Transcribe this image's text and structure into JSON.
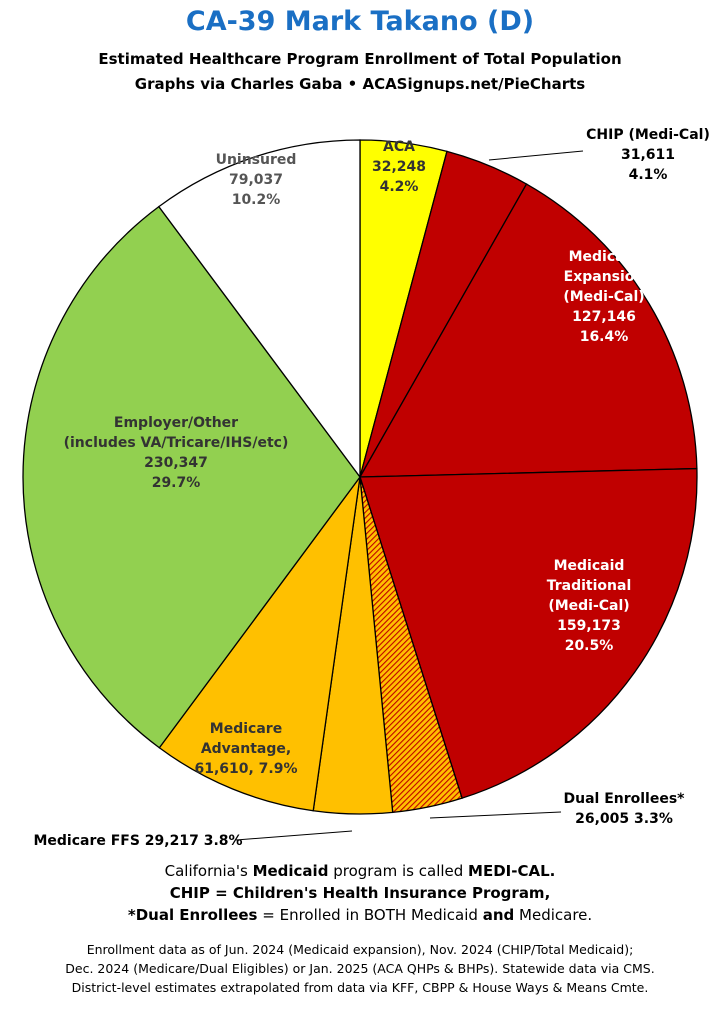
{
  "header": {
    "title": "CA-39 Mark Takano (D)",
    "subtitle_1": "Estimated Healthcare Program Enrollment of Total Population",
    "subtitle_2": "Graphs via Charles Gaba  •  ACASignups.net/PieCharts"
  },
  "chart_data": {
    "type": "pie",
    "title": "CA-39 Mark Takano (D)",
    "start": "12 o'clock, clockwise",
    "slices": [
      {
        "name": "ACA",
        "value": 32248,
        "percent": "4.2%",
        "color": "#ffff00",
        "pattern": "none",
        "labels": [
          "ACA",
          "32,248",
          "4.2%"
        ],
        "label_color": "#333333"
      },
      {
        "name": "CHIP (Medi-Cal)",
        "value": 31611,
        "percent": "4.1%",
        "color": "#c00000",
        "pattern": "none",
        "labels": [
          "CHIP (Medi-Cal)",
          "31,611",
          "4.1%"
        ],
        "label_color": "#000000"
      },
      {
        "name": "Medicaid Expansion (Medi-Cal)",
        "value": 127146,
        "percent": "16.4%",
        "color": "#c00000",
        "pattern": "none",
        "labels": [
          "Medicaid",
          "Expansion",
          "(Medi-Cal)",
          "127,146",
          "16.4%"
        ],
        "label_color": "#ffffff"
      },
      {
        "name": "Medicaid Traditional (Medi-Cal)",
        "value": 159173,
        "percent": "20.5%",
        "color": "#c00000",
        "pattern": "none",
        "labels": [
          "Medicaid",
          "Traditional",
          "(Medi-Cal)",
          "159,173",
          "20.5%"
        ],
        "label_color": "#ffffff"
      },
      {
        "name": "Dual Enrollees*",
        "value": 26005,
        "percent": "3.3%",
        "color": "#ffc000",
        "pattern": "hatch",
        "labels": [
          "Dual Enrollees*",
          "26,005 3.3%"
        ],
        "label_color": "#000000"
      },
      {
        "name": "Medicare FFS",
        "value": 29217,
        "percent": "3.8%",
        "color": "#ffc000",
        "pattern": "none",
        "labels": [
          "Medicare FFS 29,217 3.8%"
        ],
        "label_color": "#000000"
      },
      {
        "name": "Medicare Advantage",
        "value": 61610,
        "percent": "7.9%",
        "color": "#ffc000",
        "pattern": "none",
        "labels": [
          "Medicare",
          "Advantage,",
          "61,610, 7.9%"
        ],
        "label_color": "#333333"
      },
      {
        "name": "Employer/Other (includes VA/Tricare/IHS/etc)",
        "value": 230347,
        "percent": "29.7%",
        "color": "#92d050",
        "pattern": "none",
        "labels": [
          "Employer/Other",
          "(includes VA/Tricare/IHS/etc)",
          "230,347",
          "29.7%"
        ],
        "label_color": "#333333"
      },
      {
        "name": "Uninsured",
        "value": 79037,
        "percent": "10.2%",
        "color": "#ffffff",
        "pattern": "none",
        "labels": [
          "Uninsured",
          "79,037",
          "10.2%"
        ],
        "label_color": "#555555"
      }
    ]
  },
  "notes": {
    "line1_a": "California's ",
    "line1_b": "Medicaid",
    "line1_c": " program is called ",
    "line1_d": "MEDI-CAL.",
    "line2": "CHIP = Children's Health Insurance Program,",
    "line3_a": "*Dual Enrollees",
    "line3_b": " = Enrolled in BOTH Medicaid ",
    "line3_c": "and",
    "line3_d": " Medicare."
  },
  "footer": {
    "line1": "Enrollment data as of Jun. 2024 (Medicaid expansion), Nov. 2024 (CHIP/Total Medicaid);",
    "line2": "Dec. 2024 (Medicare/Dual Eligibles) or Jan. 2025 (ACA QHPs & BHPs). Statewide data via CMS.",
    "line3": "District-level estimates extrapolated from data via KFF, CBPP & House Ways & Means Cmte."
  }
}
